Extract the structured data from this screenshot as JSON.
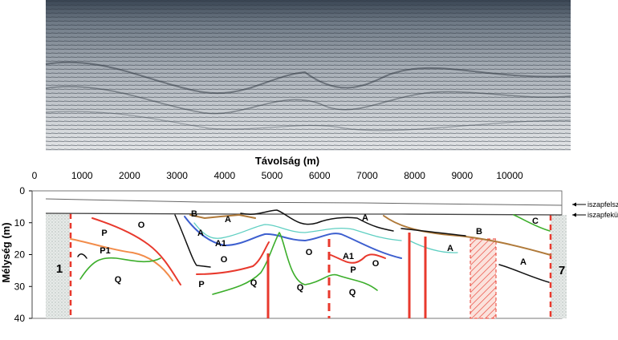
{
  "x_axis": {
    "title": "Távolság (m)",
    "ticks": [
      "0",
      "1000",
      "2000",
      "3000",
      "4000",
      "5000",
      "6000",
      "7000",
      "8000",
      "9000",
      "10000"
    ]
  },
  "y_axis": {
    "title": "Mélység (m)",
    "ticks": [
      "0",
      "10",
      "20",
      "30",
      "40"
    ]
  },
  "legend": {
    "mud_surface": "iszapfelszín",
    "mud_base": "iszapfekü"
  },
  "wells": {
    "left": "1",
    "right": "7"
  },
  "unit_labels": [
    "B",
    "A",
    "O",
    "P",
    "P1",
    "Q",
    "A",
    "A1",
    "O",
    "P",
    "Q",
    "O",
    "Q",
    "A",
    "A1",
    "P",
    "O",
    "Q",
    "A",
    "B",
    "C",
    "A"
  ],
  "colors": {
    "red": "#e8392d",
    "orange": "#f28c4a",
    "green": "#3cae2b",
    "blue": "#3d5fcf",
    "cyan": "#5fcfc2",
    "brown": "#b07a3a",
    "black": "#111111"
  }
}
